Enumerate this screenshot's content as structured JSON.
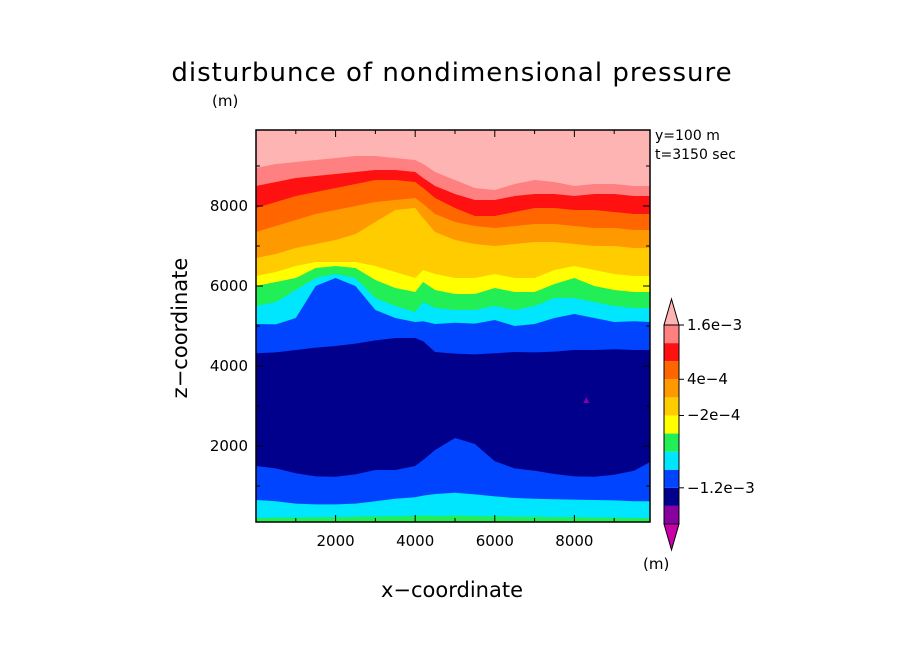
{
  "chart_data": {
    "type": "contour",
    "title": "disturbunce of nondimensional pressure",
    "ylabel_unit": "(m)",
    "xlabel": "x−coordinate",
    "ylabel": "z−coordinate",
    "annotations": [
      "y=100 m",
      "t=3150 sec"
    ],
    "xlim": [
      0,
      9900
    ],
    "ylim": [
      100,
      9900
    ],
    "xticks": [
      2000,
      4000,
      6000,
      8000
    ],
    "yticks": [
      2000,
      4000,
      6000,
      8000
    ],
    "colorbar": {
      "unit": "(m)",
      "labels": [
        {
          "text": "1.6e−3",
          "level": 0.0016
        },
        {
          "text": "4e−4",
          "level": 0.0004
        },
        {
          "text": "−2e−4",
          "level": -0.0002
        },
        {
          "text": "−1.2e−3",
          "level": -0.0012
        }
      ],
      "colors": [
        "#cc00aa",
        "#8800a0",
        "#00008c",
        "#0044ff",
        "#00e6ff",
        "#22ee55",
        "#ffff00",
        "#ffcc00",
        "#ff9900",
        "#ff6600",
        "#ff1111",
        "#ff8080",
        "#ffb4b4"
      ]
    },
    "x": [
      0,
      500,
      1000,
      1500,
      2000,
      2500,
      3000,
      3500,
      4000,
      4200,
      4500,
      5000,
      5500,
      6000,
      6500,
      7000,
      7500,
      8000,
      8500,
      9000,
      9500,
      9900
    ],
    "boundaries": [
      {
        "name": "cyan_lower",
        "color": "#00e6ff",
        "z": [
          200,
          210,
          210,
          220,
          220,
          230,
          240,
          240,
          250,
          260,
          250,
          260,
          250,
          240,
          230,
          230,
          220,
          220,
          210,
          210,
          200,
          200
        ]
      },
      {
        "name": "blue_lower",
        "color": "#0044ff",
        "z": [
          650,
          620,
          560,
          540,
          540,
          560,
          620,
          680,
          720,
          760,
          800,
          830,
          790,
          740,
          700,
          680,
          670,
          660,
          650,
          640,
          620,
          620
        ]
      },
      {
        "name": "navy",
        "color": "#00008c",
        "z": [
          1500,
          1440,
          1320,
          1240,
          1230,
          1290,
          1400,
          1400,
          1500,
          1650,
          1900,
          2200,
          2050,
          1620,
          1440,
          1380,
          1300,
          1240,
          1230,
          1280,
          1380,
          1600
        ]
      },
      {
        "name": "blue_upper",
        "color": "#0044ff",
        "z": [
          4320,
          4340,
          4400,
          4460,
          4500,
          4560,
          4640,
          4700,
          4700,
          4620,
          4350,
          4310,
          4290,
          4320,
          4350,
          4340,
          4360,
          4400,
          4400,
          4420,
          4400,
          4400
        ]
      },
      {
        "name": "cyan_upper",
        "color": "#00e6ff",
        "z": [
          5050,
          5040,
          5200,
          6000,
          6200,
          6000,
          5400,
          5200,
          5100,
          5120,
          5050,
          5080,
          5060,
          5150,
          5000,
          5050,
          5200,
          5300,
          5200,
          5100,
          5120,
          5100
        ]
      },
      {
        "name": "green",
        "color": "#22ee55",
        "z": [
          5500,
          5600,
          5900,
          6200,
          6300,
          6200,
          5700,
          5500,
          5350,
          5600,
          5450,
          5400,
          5400,
          5500,
          5400,
          5500,
          5700,
          5700,
          5600,
          5500,
          5450,
          5450
        ]
      },
      {
        "name": "yellow",
        "color": "#ffff00",
        "z": [
          6000,
          6100,
          6200,
          6450,
          6500,
          6450,
          6150,
          5950,
          5850,
          6100,
          5900,
          5800,
          5800,
          5950,
          5850,
          5850,
          6050,
          6200,
          6000,
          5900,
          5850,
          5850
        ]
      },
      {
        "name": "gold",
        "color": "#ffcc00",
        "z": [
          6250,
          6350,
          6500,
          6600,
          6600,
          6600,
          6500,
          6350,
          6200,
          6400,
          6300,
          6200,
          6200,
          6300,
          6200,
          6200,
          6400,
          6500,
          6400,
          6300,
          6250,
          6250
        ]
      },
      {
        "name": "orange",
        "color": "#ff9900",
        "z": [
          6700,
          6800,
          6950,
          7050,
          7150,
          7300,
          7600,
          7900,
          7950,
          7700,
          7350,
          7150,
          7050,
          7000,
          7050,
          7100,
          7100,
          7050,
          7000,
          7000,
          6950,
          6950
        ]
      },
      {
        "name": "dark_orange",
        "color": "#ff6600",
        "z": [
          7350,
          7500,
          7650,
          7800,
          7900,
          8000,
          8100,
          8150,
          8200,
          8050,
          7800,
          7600,
          7500,
          7450,
          7500,
          7550,
          7550,
          7500,
          7450,
          7450,
          7400,
          7400
        ]
      },
      {
        "name": "red",
        "color": "#ff1111",
        "z": [
          7950,
          8100,
          8250,
          8350,
          8450,
          8550,
          8650,
          8650,
          8600,
          8450,
          8200,
          7950,
          7750,
          7750,
          7850,
          7950,
          7950,
          7900,
          7900,
          7850,
          7800,
          7800
        ]
      },
      {
        "name": "salmon",
        "color": "#ff8080",
        "z": [
          8500,
          8600,
          8700,
          8750,
          8800,
          8850,
          8900,
          8900,
          8850,
          8700,
          8500,
          8300,
          8150,
          8150,
          8250,
          8300,
          8300,
          8250,
          8300,
          8300,
          8250,
          8250
        ]
      },
      {
        "name": "pink",
        "color": "#ffb4b4",
        "z": [
          8950,
          9050,
          9100,
          9150,
          9200,
          9250,
          9250,
          9200,
          9150,
          9050,
          8850,
          8650,
          8450,
          8400,
          8550,
          8650,
          8600,
          8500,
          8550,
          8550,
          8500,
          8500
        ]
      }
    ],
    "background_color": "#22ee55",
    "features": [
      {
        "name": "purple_spot",
        "color": "#8800a0",
        "x": 8300,
        "z": 3150
      }
    ]
  }
}
